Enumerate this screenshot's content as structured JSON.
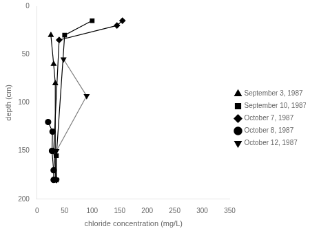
{
  "chart_data": {
    "type": "line",
    "xlabel": "chloride concentration (mg/L)",
    "ylabel": "depth (cm)",
    "series": [
      {
        "name": "September 3, 1987",
        "color": "black",
        "marker": "triangle-up",
        "line_style": "solid",
        "x": [
          25,
          30,
          33,
          33
        ],
        "values": [
          30,
          60,
          80,
          180
        ]
      },
      {
        "name": "September 10, 1987",
        "color": "black",
        "marker": "square",
        "line_style": "solid",
        "x": [
          100,
          50,
          35,
          35
        ],
        "values": [
          15,
          30,
          155,
          180
        ]
      },
      {
        "name": "October 7, 1987",
        "color": "black",
        "marker": "diamond",
        "line_style": "solid",
        "x": [
          155,
          145,
          40,
          30,
          35
        ],
        "values": [
          15,
          20,
          35,
          150,
          180
        ]
      },
      {
        "name": "October 8, 1987",
        "color": "black",
        "marker": "circle",
        "line_style": "solid",
        "x": [
          20,
          28,
          27,
          30,
          30
        ],
        "values": [
          120,
          130,
          150,
          170,
          180
        ]
      },
      {
        "name": "October 12, 1987",
        "color": "grey",
        "marker": "triangle-down",
        "line_style": "solid",
        "x": [
          48,
          90,
          35,
          35
        ],
        "values": [
          55,
          93,
          150,
          180
        ]
      }
    ],
    "xlim": [
      0,
      350
    ],
    "ylim": [
      200,
      0
    ],
    "xticks": [
      0,
      50,
      100,
      150,
      200,
      250,
      300,
      350
    ],
    "yticks": [
      0,
      50,
      100,
      150,
      200
    ],
    "grid": false,
    "legend": "right"
  }
}
